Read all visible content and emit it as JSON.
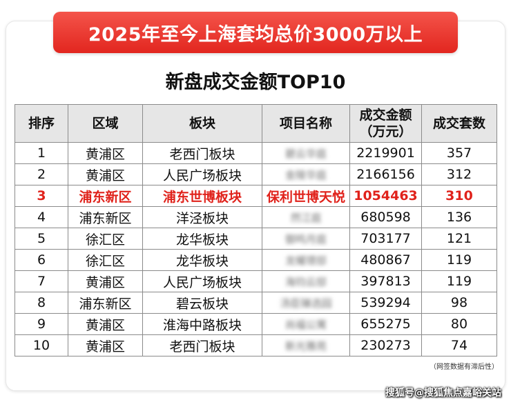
{
  "banner": {
    "title": "2025年至今上海套均总价3000万以上"
  },
  "subtitle": "新盘成交金额TOP10",
  "table": {
    "headers": [
      "排序",
      "区域",
      "板块",
      "项目名称",
      "成交金额\n（万元）",
      "成交套数"
    ],
    "rows": [
      {
        "rank": "1",
        "area": "黄浦区",
        "block": "老西门板块",
        "project": "碧云华庭",
        "amount": "2219901",
        "units": "357"
      },
      {
        "rank": "2",
        "area": "黄浦区",
        "block": "人民广场板块",
        "project": "金陵华庭",
        "amount": "2166156",
        "units": "312"
      },
      {
        "rank": "3",
        "area": "浦东新区",
        "block": "浦东世博板块",
        "project": "保利世博天悦",
        "amount": "1054463",
        "units": "310"
      },
      {
        "rank": "4",
        "area": "浦东新区",
        "block": "洋泾板块",
        "project": "然江庭",
        "amount": "680598",
        "units": "136"
      },
      {
        "rank": "5",
        "area": "徐汇区",
        "block": "龙华板块",
        "project": "御鸣月庭",
        "amount": "703177",
        "units": "121"
      },
      {
        "rank": "6",
        "area": "徐汇区",
        "block": "龙华板块",
        "project": "龙耀璟邸",
        "amount": "480867",
        "units": "119"
      },
      {
        "rank": "7",
        "area": "黄浦区",
        "block": "人民广场板块",
        "project": "海钧云邸",
        "amount": "397813",
        "units": "119"
      },
      {
        "rank": "8",
        "area": "浦东新区",
        "block": "碧云板块",
        "project": "汤臣臻选园",
        "amount": "539294",
        "units": "98"
      },
      {
        "rank": "9",
        "area": "黄浦区",
        "block": "淮海中路板块",
        "project": "尚福公寓",
        "amount": "655275",
        "units": "80"
      },
      {
        "rank": "10",
        "area": "黄浦区",
        "block": "老西门板块",
        "project": "新光雅苑",
        "amount": "230273",
        "units": "74"
      }
    ],
    "highlight_row": 2,
    "highlight_color": "#e0221b"
  },
  "note": "（网签数据有滞后性）",
  "watermark": "搜狐号@搜狐焦点嘉峪关站"
}
